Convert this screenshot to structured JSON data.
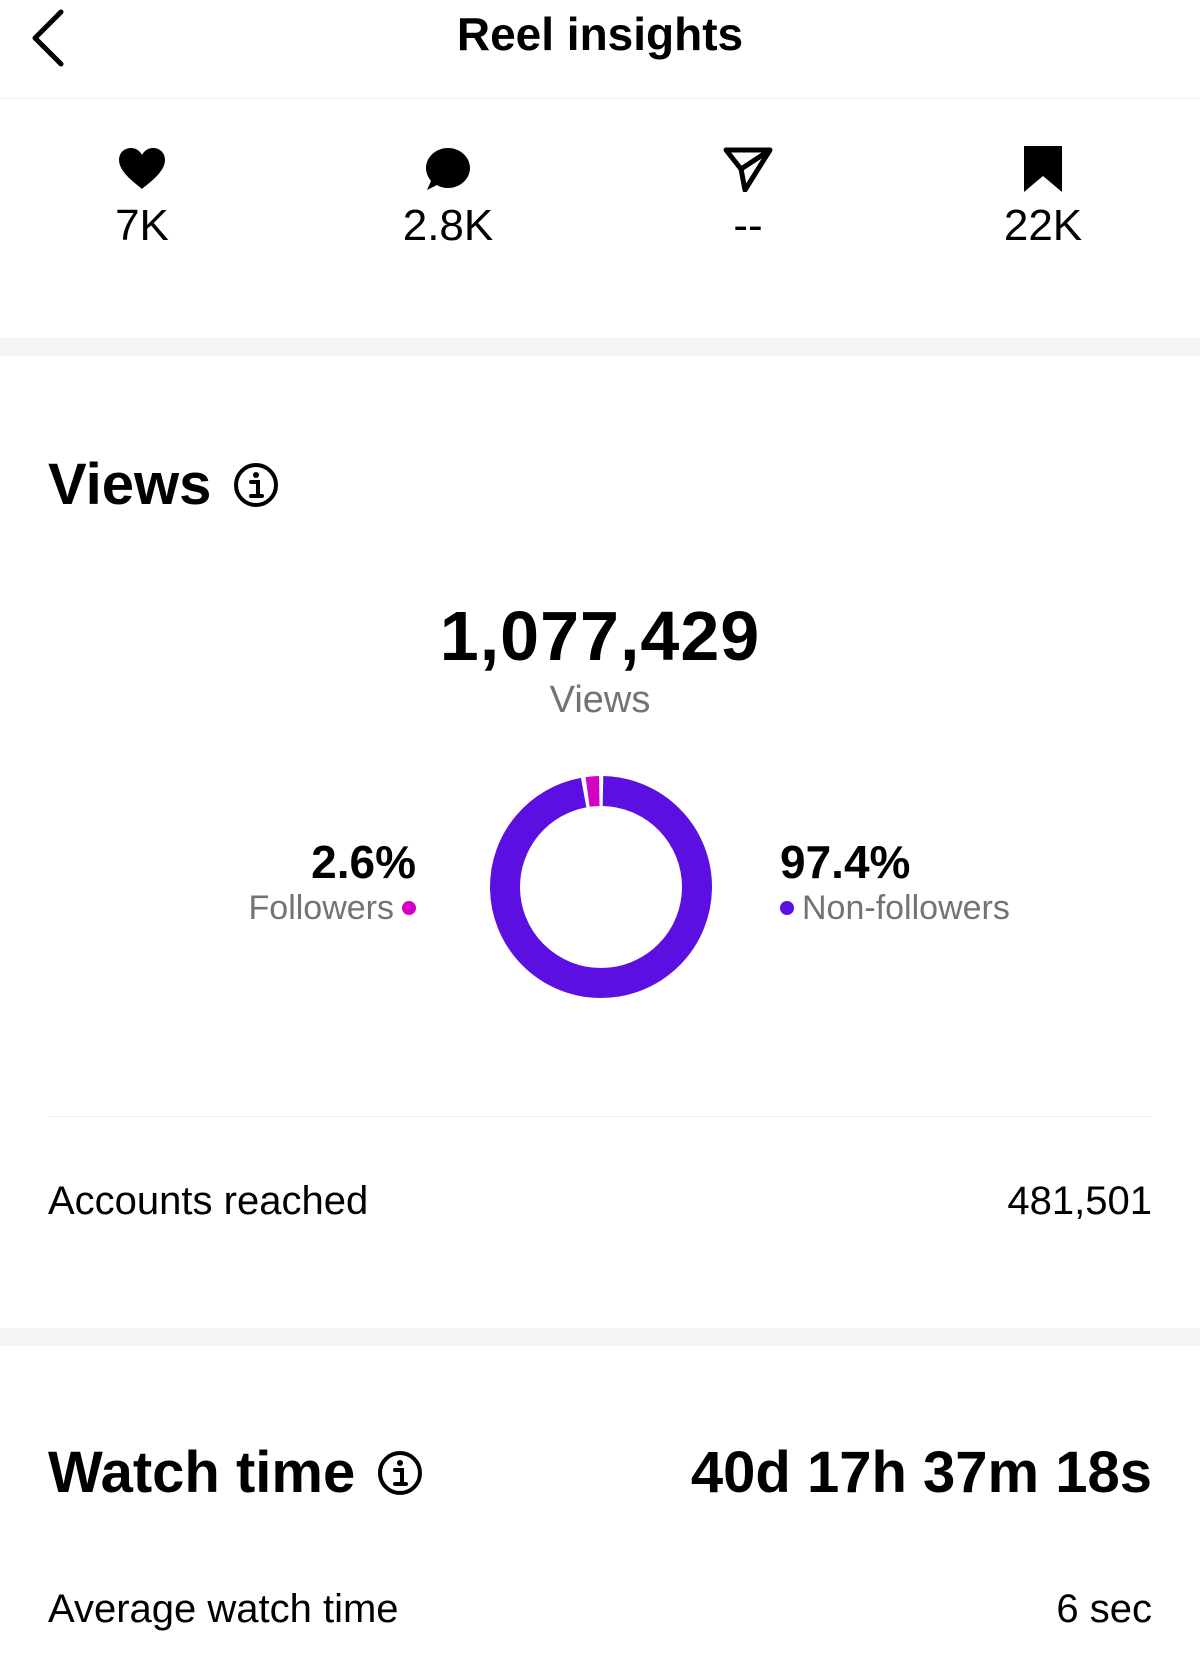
{
  "header": {
    "title": "Reel insights"
  },
  "engagement": [
    {
      "icon": "heart-icon",
      "value": "7K"
    },
    {
      "icon": "comment-icon",
      "value": "2.8K"
    },
    {
      "icon": "share-icon",
      "value": "--"
    },
    {
      "icon": "bookmark-icon",
      "value": "22K"
    }
  ],
  "views": {
    "title": "Views",
    "total": "1,077,429",
    "total_label": "Views",
    "followers": {
      "percent": "2.6%",
      "label": "Followers",
      "value": 2.6,
      "color": "#d300c5"
    },
    "non_followers": {
      "percent": "97.4%",
      "label": "Non-followers",
      "value": 97.4,
      "color": "#5b0fe0"
    },
    "accounts_reached_label": "Accounts reached",
    "accounts_reached_value": "481,501"
  },
  "watch_time": {
    "title": "Watch time",
    "value": "40d 17h 37m 18s",
    "average_label": "Average watch time",
    "average_value": "6 sec"
  },
  "colors": {
    "accent": "#5b0fe0",
    "followers": "#d300c5",
    "secondary_text": "#737373"
  }
}
